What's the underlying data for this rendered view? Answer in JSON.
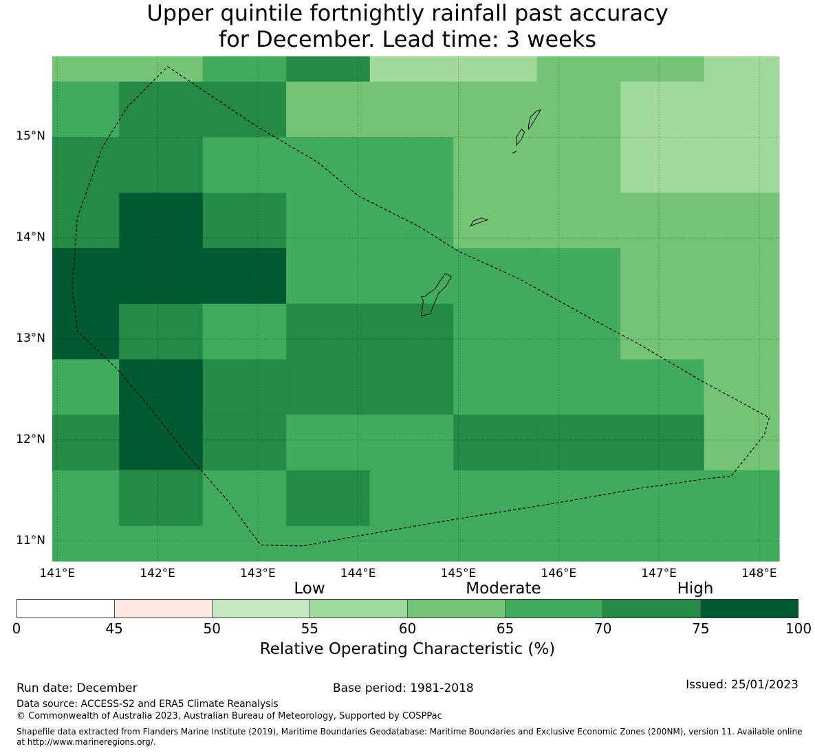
{
  "title": {
    "line1": "Upper quintile fortnightly rainfall past accuracy",
    "line2": "for December. Lead time: 3 weeks"
  },
  "map": {
    "lon_range": [
      140.95,
      148.2
    ],
    "lat_range": [
      10.8,
      15.8
    ],
    "lat_ticks": [
      {
        "value": 15,
        "label": "15°N"
      },
      {
        "value": 14,
        "label": "14°N"
      },
      {
        "value": 13,
        "label": "13°N"
      },
      {
        "value": 12,
        "label": "12°N"
      },
      {
        "value": 11,
        "label": "11°N"
      }
    ],
    "lon_ticks": [
      {
        "value": 141,
        "label": "141°E"
      },
      {
        "value": 142,
        "label": "142°E"
      },
      {
        "value": 143,
        "label": "143°E"
      },
      {
        "value": 144,
        "label": "144°E"
      },
      {
        "value": 145,
        "label": "145°E"
      },
      {
        "value": 146,
        "label": "146°E"
      },
      {
        "value": 147,
        "label": "147°E"
      },
      {
        "value": 148,
        "label": "148°E"
      }
    ],
    "grid_lon_edges": [
      140.95,
      141.617,
      142.45,
      143.283,
      144.117,
      144.95,
      145.783,
      146.617,
      147.45,
      148.2
    ],
    "grid_lat_edges": [
      15.8,
      15.55,
      15.0,
      14.45,
      13.9,
      13.35,
      12.8,
      12.25,
      11.7,
      11.15,
      10.8
    ],
    "roc_bins": [
      "70-75",
      "70-75",
      "65-70",
      "75-100",
      "60-65",
      "55-60",
      "55-60",
      "55-60",
      "50-55",
      "55-60",
      "55-60",
      "55-60",
      "55-60",
      "55-60"
    ],
    "cells": [
      [
        "60-65",
        "60-65",
        "65-70",
        "70-75",
        "55-60",
        "55-60",
        "60-65",
        "60-65",
        "55-60"
      ],
      [
        "65-70",
        "70-75",
        "70-75",
        "60-65",
        "60-65",
        "60-65",
        "60-65",
        "55-60",
        "55-60"
      ],
      [
        "70-75",
        "70-75",
        "65-70",
        "65-70",
        "65-70",
        "60-65",
        "60-65",
        "55-60",
        "55-60"
      ],
      [
        "70-75",
        "75-100",
        "70-75",
        "65-70",
        "65-70",
        "60-65",
        "60-65",
        "60-65",
        "60-65"
      ],
      [
        "75-100",
        "75-100",
        "75-100",
        "65-70",
        "65-70",
        "65-70",
        "65-70",
        "60-65",
        "60-65"
      ],
      [
        "75-100",
        "70-75",
        "65-70",
        "70-75",
        "70-75",
        "65-70",
        "65-70",
        "60-65",
        "60-65"
      ],
      [
        "65-70",
        "75-100",
        "70-75",
        "70-75",
        "70-75",
        "65-70",
        "65-70",
        "65-70",
        "60-65"
      ],
      [
        "70-75",
        "75-100",
        "70-75",
        "65-70",
        "65-70",
        "70-75",
        "70-75",
        "70-75",
        "60-65"
      ],
      [
        "65-70",
        "70-75",
        "65-70",
        "70-75",
        "65-70",
        "65-70",
        "65-70",
        "65-70",
        "65-70"
      ],
      [
        "65-70",
        "65-70",
        "65-70",
        "65-70",
        "65-70",
        "65-70",
        "65-70",
        "65-70",
        "65-70"
      ]
    ],
    "eez_boundary": [
      [
        142.1,
        15.7
      ],
      [
        143.0,
        15.1
      ],
      [
        143.6,
        14.75
      ],
      [
        144.0,
        14.42
      ],
      [
        144.6,
        14.12
      ],
      [
        145.0,
        13.87
      ],
      [
        145.6,
        13.6
      ],
      [
        146.2,
        13.27
      ],
      [
        146.8,
        12.95
      ],
      [
        147.4,
        12.6
      ],
      [
        148.1,
        12.22
      ],
      [
        148.05,
        12.05
      ],
      [
        147.72,
        11.64
      ],
      [
        147.5,
        11.62
      ],
      [
        146.8,
        11.52
      ],
      [
        146.0,
        11.38
      ],
      [
        145.0,
        11.22
      ],
      [
        144.0,
        11.05
      ],
      [
        143.45,
        10.95
      ],
      [
        143.03,
        10.96
      ],
      [
        142.7,
        11.4
      ],
      [
        142.3,
        11.85
      ],
      [
        141.9,
        12.35
      ],
      [
        141.6,
        12.7
      ],
      [
        141.2,
        13.08
      ],
      [
        141.15,
        13.5
      ],
      [
        141.2,
        14.2
      ],
      [
        141.45,
        14.9
      ],
      [
        141.7,
        15.3
      ],
      [
        142.1,
        15.7
      ]
    ],
    "islands": [
      {
        "name": "Guam",
        "points": [
          [
            144.63,
            13.23
          ],
          [
            144.72,
            13.25
          ],
          [
            144.78,
            13.4
          ],
          [
            144.8,
            13.45
          ],
          [
            144.88,
            13.53
          ],
          [
            144.93,
            13.62
          ],
          [
            144.87,
            13.65
          ],
          [
            144.82,
            13.58
          ],
          [
            144.77,
            13.5
          ],
          [
            144.7,
            13.45
          ],
          [
            144.66,
            13.42
          ],
          [
            144.63,
            13.42
          ],
          [
            144.65,
            13.38
          ],
          [
            144.64,
            13.3
          ]
        ]
      },
      {
        "name": "Rota",
        "points": [
          [
            145.12,
            14.12
          ],
          [
            145.2,
            14.15
          ],
          [
            145.29,
            14.18
          ],
          [
            145.23,
            14.2
          ],
          [
            145.15,
            14.17
          ]
        ]
      },
      {
        "name": "Tinian",
        "points": [
          [
            145.58,
            14.92
          ],
          [
            145.63,
            14.98
          ],
          [
            145.66,
            15.05
          ],
          [
            145.63,
            15.08
          ],
          [
            145.58,
            15.0
          ]
        ]
      },
      {
        "name": "Saipan",
        "points": [
          [
            145.7,
            15.08
          ],
          [
            145.75,
            15.15
          ],
          [
            145.82,
            15.27
          ],
          [
            145.78,
            15.26
          ],
          [
            145.72,
            15.2
          ],
          [
            145.7,
            15.12
          ]
        ]
      },
      {
        "name": "Aguijan",
        "points": [
          [
            145.54,
            14.84
          ],
          [
            145.58,
            14.86
          ],
          [
            145.55,
            14.85
          ]
        ]
      }
    ]
  },
  "colorbar": {
    "bins": [
      {
        "range": "0-45",
        "color": "#ffffff"
      },
      {
        "range": "45-50",
        "color": "#fde9e1"
      },
      {
        "range": "50-55",
        "color": "#c7e9c0"
      },
      {
        "range": "55-60",
        "color": "#a1d99b"
      },
      {
        "range": "60-65",
        "color": "#74c476"
      },
      {
        "range": "65-70",
        "color": "#41ab5d"
      },
      {
        "range": "70-75",
        "color": "#238b45"
      },
      {
        "range": "75-100",
        "color": "#005a32"
      }
    ],
    "ticks": [
      "0",
      "45",
      "50",
      "55",
      "60",
      "65",
      "70",
      "75",
      "100"
    ],
    "categories": {
      "low": "Low",
      "moderate": "Moderate",
      "high": "High"
    },
    "label": "Relative Operating Characteristic (%)"
  },
  "footer": {
    "run_date": "Run date: December",
    "base_period": "Base period: 1981-2018",
    "issued": "Issued: 25/01/2023",
    "data_source": "Data source: ACCESS-S2 and ERA5 Climate Reanalysis",
    "copyright": "© Commonwealth of Australia 2023, Australian Bureau of Meteorology, Supported by COSPPac",
    "shapefile": "Shapefile data extracted from Flanders Marine Institute (2019), Maritime Boundaries Geodatabase: Maritime Boundaries and Exclusive Economic Zones (200NM), version 11. Available online at http://www.marineregions.org/."
  }
}
